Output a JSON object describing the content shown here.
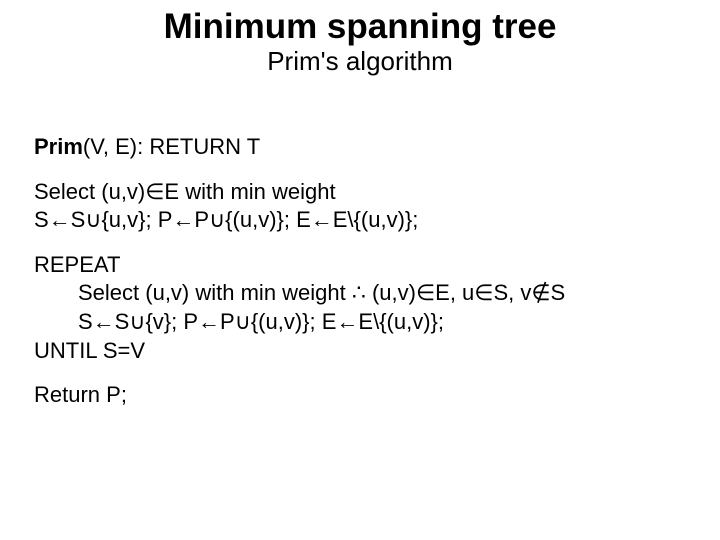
{
  "title": "Minimum spanning tree",
  "subtitle": "Prim's algorithm",
  "signature_head": "Prim",
  "signature_tail": "(V, E): RETURN T",
  "initial_select": "Select (u,v)∈E with min weight",
  "initial_update": "S←S∪{u,v}; P←P∪{(u,v)}; E←E\\{(u,v)};",
  "repeat_header": "REPEAT",
  "repeat_select": "Select (u,v) with min weight ∴ (u,v)∈E, u∈S, v∉S",
  "repeat_update": "S←S∪{v}; P←P∪{(u,v)}; E←E\\{(u,v)};",
  "until_line": "UNTIL S=V",
  "return_line": "Return P;",
  "colors": {
    "text": "#000000",
    "background": "#ffffff"
  },
  "fonts": {
    "title_size_pt": 35,
    "subtitle_size_pt": 26,
    "body_size_pt": 22,
    "family": "Verdana, sans-serif"
  }
}
